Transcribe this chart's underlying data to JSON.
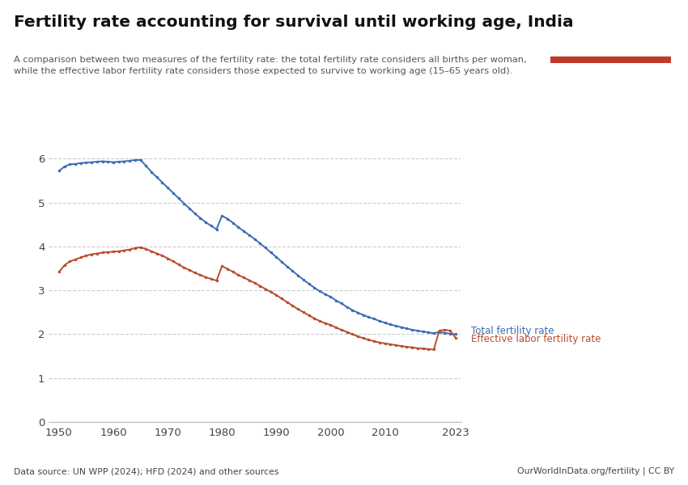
{
  "title": "Fertility rate accounting for survival until working age, India",
  "subtitle_line1": "A comparison between two measures of the fertility rate: the total fertility rate considers all births per woman,",
  "subtitle_line2": "while the effective labor fertility rate considers those expected to survive to working age (15–65 years old).",
  "datasource": "Data source: UN WPP (2024); HFD (2024) and other sources",
  "url": "OurWorldInData.org/fertility | CC BY",
  "ylim": [
    0,
    6.3
  ],
  "yticks": [
    0,
    1,
    2,
    3,
    4,
    5,
    6
  ],
  "xticks": [
    1950,
    1960,
    1970,
    1980,
    1990,
    2000,
    2010,
    2023
  ],
  "total_fertility_color": "#3d6cb5",
  "effective_fertility_color": "#b84d2c",
  "background_color": "#ffffff",
  "total_fertility_label": "Total fertility rate",
  "effective_fertility_label": "Effective labor fertility rate",
  "total_fertility_years": [
    1950,
    1951,
    1952,
    1953,
    1954,
    1955,
    1956,
    1957,
    1958,
    1959,
    1960,
    1961,
    1962,
    1963,
    1964,
    1965,
    1966,
    1967,
    1968,
    1969,
    1970,
    1971,
    1972,
    1973,
    1974,
    1975,
    1976,
    1977,
    1978,
    1979,
    1980,
    1981,
    1982,
    1983,
    1984,
    1985,
    1986,
    1987,
    1988,
    1989,
    1990,
    1991,
    1992,
    1993,
    1994,
    1995,
    1996,
    1997,
    1998,
    1999,
    2000,
    2001,
    2002,
    2003,
    2004,
    2005,
    2006,
    2007,
    2008,
    2009,
    2010,
    2011,
    2012,
    2013,
    2014,
    2015,
    2016,
    2017,
    2018,
    2019,
    2020,
    2021,
    2022,
    2023
  ],
  "total_fertility_values": [
    5.72,
    5.82,
    5.87,
    5.88,
    5.9,
    5.91,
    5.92,
    5.93,
    5.94,
    5.93,
    5.92,
    5.93,
    5.94,
    5.95,
    5.97,
    5.97,
    5.84,
    5.7,
    5.58,
    5.46,
    5.34,
    5.22,
    5.1,
    4.98,
    4.87,
    4.75,
    4.65,
    4.55,
    4.47,
    4.39,
    4.7,
    4.63,
    4.54,
    4.44,
    4.35,
    4.26,
    4.17,
    4.07,
    3.97,
    3.86,
    3.76,
    3.65,
    3.54,
    3.44,
    3.34,
    3.24,
    3.15,
    3.06,
    2.98,
    2.91,
    2.85,
    2.77,
    2.7,
    2.62,
    2.55,
    2.49,
    2.44,
    2.39,
    2.35,
    2.3,
    2.26,
    2.22,
    2.19,
    2.16,
    2.13,
    2.1,
    2.08,
    2.06,
    2.04,
    2.02,
    2.05,
    2.03,
    2.01,
    2.0
  ],
  "effective_fertility_years": [
    1950,
    1951,
    1952,
    1953,
    1954,
    1955,
    1956,
    1957,
    1958,
    1959,
    1960,
    1961,
    1962,
    1963,
    1964,
    1965,
    1966,
    1967,
    1968,
    1969,
    1970,
    1971,
    1972,
    1973,
    1974,
    1975,
    1976,
    1977,
    1978,
    1979,
    1980,
    1981,
    1982,
    1983,
    1984,
    1985,
    1986,
    1987,
    1988,
    1989,
    1990,
    1991,
    1992,
    1993,
    1994,
    1995,
    1996,
    1997,
    1998,
    1999,
    2000,
    2001,
    2002,
    2003,
    2004,
    2005,
    2006,
    2007,
    2008,
    2009,
    2010,
    2011,
    2012,
    2013,
    2014,
    2015,
    2016,
    2017,
    2018,
    2019,
    2020,
    2021,
    2022,
    2023
  ],
  "effective_fertility_values": [
    3.42,
    3.57,
    3.66,
    3.7,
    3.75,
    3.79,
    3.82,
    3.84,
    3.86,
    3.87,
    3.88,
    3.89,
    3.91,
    3.93,
    3.96,
    3.98,
    3.94,
    3.89,
    3.84,
    3.79,
    3.73,
    3.66,
    3.59,
    3.52,
    3.46,
    3.4,
    3.35,
    3.3,
    3.26,
    3.22,
    3.55,
    3.49,
    3.42,
    3.35,
    3.29,
    3.23,
    3.17,
    3.1,
    3.03,
    2.96,
    2.89,
    2.81,
    2.73,
    2.65,
    2.57,
    2.5,
    2.43,
    2.36,
    2.3,
    2.25,
    2.21,
    2.15,
    2.1,
    2.05,
    2.0,
    1.95,
    1.91,
    1.87,
    1.84,
    1.81,
    1.79,
    1.77,
    1.75,
    1.73,
    1.71,
    1.7,
    1.68,
    1.67,
    1.66,
    1.65,
    2.08,
    2.1,
    2.08,
    1.92
  ]
}
